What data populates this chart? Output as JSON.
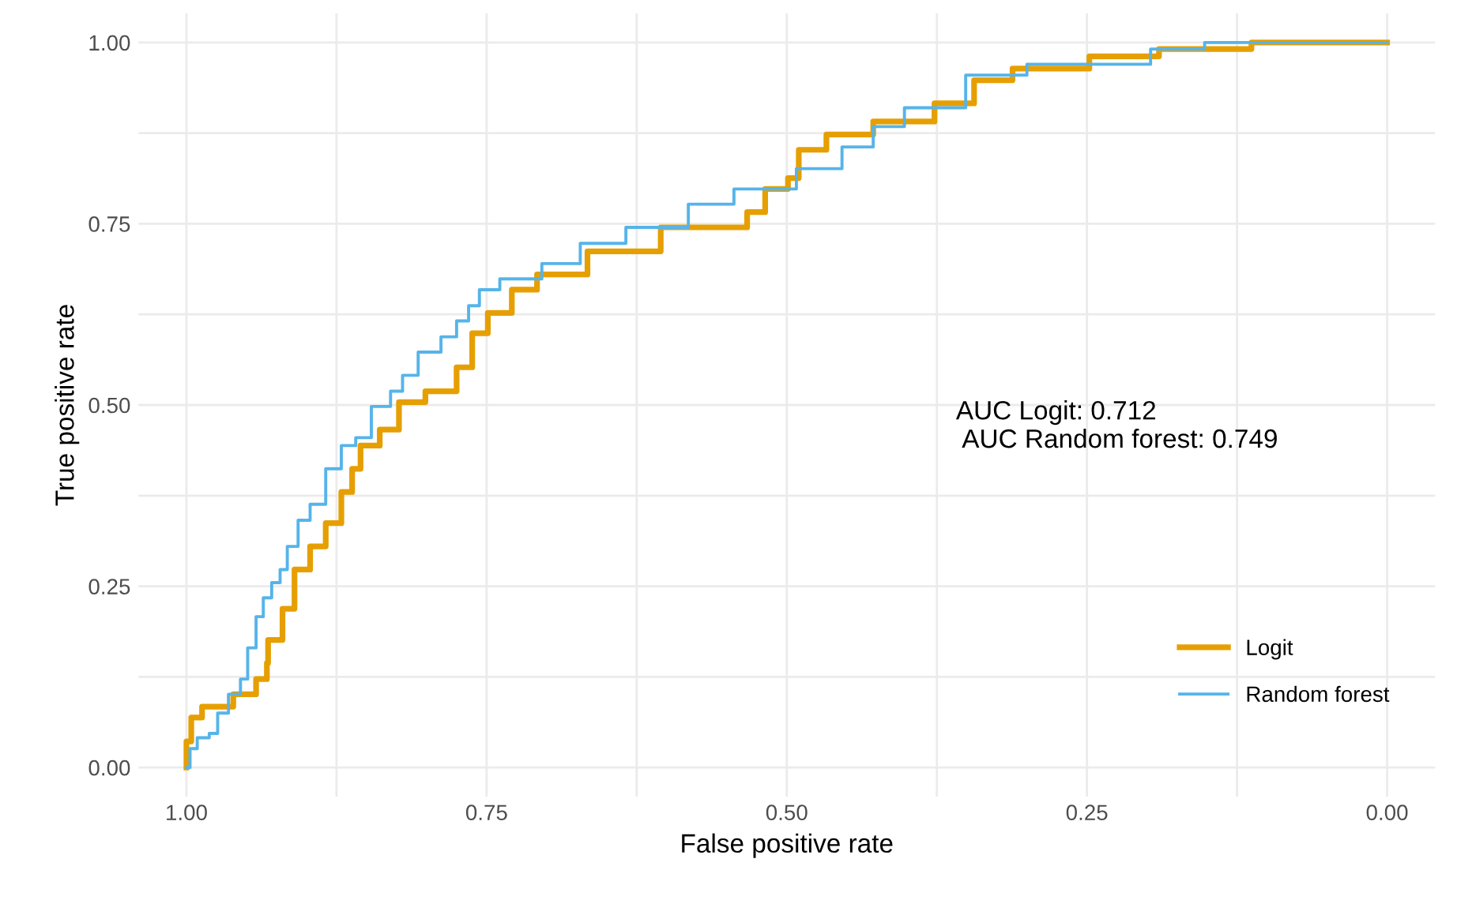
{
  "chart_data": {
    "type": "step",
    "xlabel": "False positive rate",
    "ylabel": "True positive rate",
    "xlim": [
      1.04,
      -0.04
    ],
    "ylim": [
      -0.04,
      1.04
    ],
    "xticks": [
      {
        "value": 1.0,
        "label": "1.00"
      },
      {
        "value": 0.875,
        "label": null
      },
      {
        "value": 0.75,
        "label": "0.75"
      },
      {
        "value": 0.625,
        "label": null
      },
      {
        "value": 0.5,
        "label": "0.50"
      },
      {
        "value": 0.375,
        "label": null
      },
      {
        "value": 0.25,
        "label": "0.25"
      },
      {
        "value": 0.125,
        "label": null
      },
      {
        "value": 0.0,
        "label": "0.00"
      }
    ],
    "yticks": [
      {
        "value": 0.0,
        "label": "0.00"
      },
      {
        "value": 0.125,
        "label": null
      },
      {
        "value": 0.25,
        "label": "0.25"
      },
      {
        "value": 0.375,
        "label": null
      },
      {
        "value": 0.5,
        "label": "0.50"
      },
      {
        "value": 0.625,
        "label": null
      },
      {
        "value": 0.75,
        "label": "0.75"
      },
      {
        "value": 0.875,
        "label": null
      },
      {
        "value": 1.0,
        "label": "1.00"
      }
    ],
    "grid": true,
    "legend": "bottom right",
    "marker": "none",
    "line_style": "solid",
    "annotations": [
      "AUC Logit: 0.712\n AUC Random forest: 0.749"
    ],
    "series": [
      {
        "name": "Logit",
        "color": "#e69f00",
        "x": [
          1.0,
          1.0,
          0.996,
          0.987,
          0.961,
          0.942,
          0.933,
          0.932,
          0.92,
          0.91,
          0.897,
          0.884,
          0.871,
          0.862,
          0.855,
          0.839,
          0.823,
          0.801,
          0.775,
          0.762,
          0.749,
          0.729,
          0.708,
          0.666,
          0.605,
          0.533,
          0.518,
          0.499,
          0.49,
          0.467,
          0.428,
          0.377,
          0.344,
          0.312,
          0.248,
          0.19,
          0.113,
          0.0
        ],
        "values": [
          0.0,
          0.036,
          0.069,
          0.084,
          0.101,
          0.122,
          0.144,
          0.176,
          0.219,
          0.273,
          0.305,
          0.337,
          0.38,
          0.412,
          0.444,
          0.466,
          0.504,
          0.519,
          0.552,
          0.599,
          0.627,
          0.659,
          0.68,
          0.712,
          0.745,
          0.766,
          0.798,
          0.813,
          0.852,
          0.873,
          0.891,
          0.916,
          0.948,
          0.964,
          0.981,
          0.991,
          1.0,
          1.0
        ]
      },
      {
        "name": "Random forest",
        "color": "#56b4e9",
        "x": [
          1.0,
          0.997,
          0.991,
          0.981,
          0.974,
          0.965,
          0.955,
          0.949,
          0.942,
          0.936,
          0.929,
          0.922,
          0.916,
          0.907,
          0.897,
          0.884,
          0.871,
          0.859,
          0.846,
          0.83,
          0.82,
          0.807,
          0.788,
          0.775,
          0.765,
          0.756,
          0.739,
          0.704,
          0.672,
          0.634,
          0.582,
          0.544,
          0.492,
          0.454,
          0.428,
          0.402,
          0.351,
          0.3,
          0.197,
          0.152,
          0.0
        ],
        "values": [
          0.0,
          0.026,
          0.041,
          0.047,
          0.075,
          0.101,
          0.122,
          0.165,
          0.208,
          0.234,
          0.255,
          0.273,
          0.305,
          0.341,
          0.363,
          0.412,
          0.444,
          0.455,
          0.498,
          0.519,
          0.541,
          0.573,
          0.594,
          0.616,
          0.637,
          0.659,
          0.674,
          0.695,
          0.723,
          0.745,
          0.777,
          0.798,
          0.826,
          0.856,
          0.884,
          0.91,
          0.955,
          0.97,
          0.991,
          1.0,
          1.0
        ]
      }
    ]
  }
}
